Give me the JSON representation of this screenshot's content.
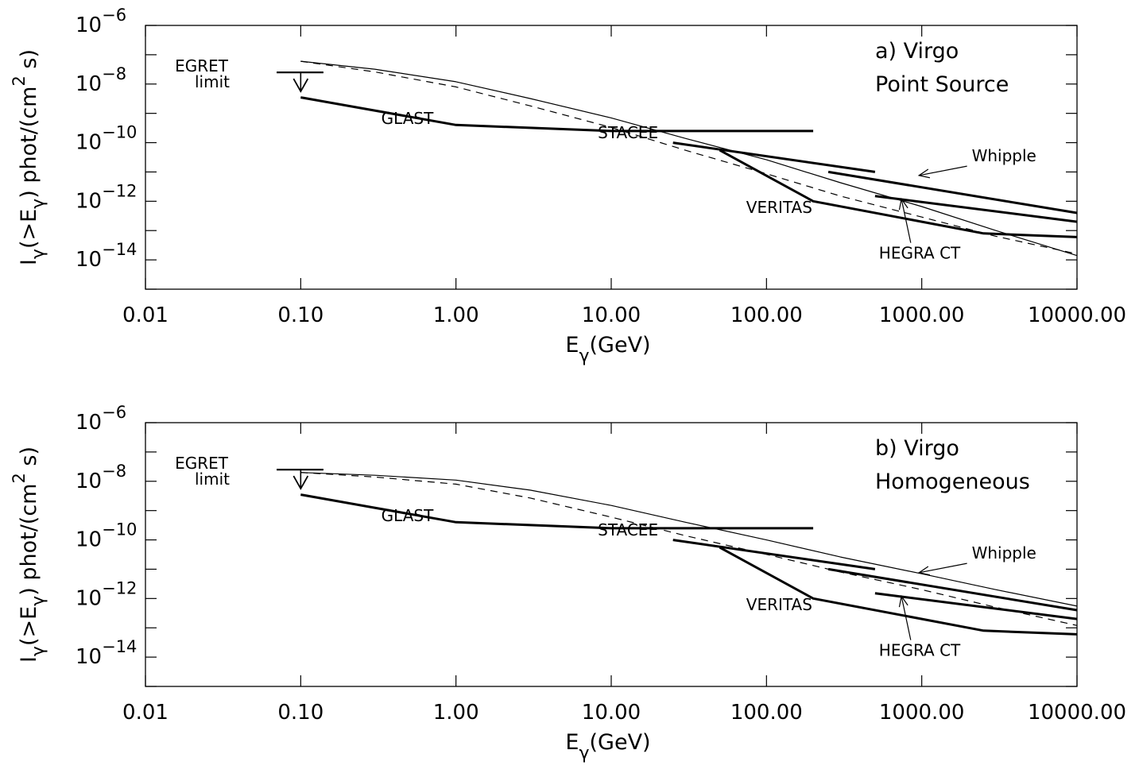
{
  "colors": {
    "background": "#ffffff",
    "ink": "#000000"
  },
  "chart_data": [
    {
      "type": "line",
      "panel_label": "a) Virgo",
      "panel_subtitle": "Point Source",
      "xscale": "log",
      "yscale": "log",
      "xlim": [
        0.01,
        10000
      ],
      "ylim": [
        1e-15,
        1e-06
      ],
      "x_ticks": [
        0.01,
        0.1,
        1,
        10,
        100,
        1000,
        10000
      ],
      "x_tick_labels": [
        "0.01",
        "0.10",
        "1.00",
        "10.00",
        "100.00",
        "1000.00",
        "10000.00"
      ],
      "y_ticks": [
        1e-06,
        1e-08,
        1e-10,
        1e-12,
        1e-14
      ],
      "y_tick_labels": [
        {
          "base": "10",
          "exp": "−6"
        },
        {
          "base": "10",
          "exp": "−8"
        },
        {
          "base": "10",
          "exp": "−10"
        },
        {
          "base": "10",
          "exp": "−12"
        },
        {
          "base": "10",
          "exp": "−14"
        }
      ],
      "xlabel": {
        "main": "E",
        "sub": "γ",
        "unit": "(GeV)"
      },
      "ylabel": {
        "t1": "I",
        "s1": "γ",
        "t2": "(>E",
        "s2": "γ",
        "t3": ") phot/(cm",
        "sup": "2",
        "t4": " s)"
      },
      "egret_limit": {
        "label_line1": "EGRET",
        "label_line2": "limit",
        "value": 2.5e-08,
        "x_range": [
          0.07,
          0.14
        ],
        "arrow_x": 0.1
      },
      "series": [
        {
          "name": "model (solid)",
          "style": "thin",
          "x": [
            0.1,
            0.3,
            1,
            3,
            10,
            30,
            100,
            300,
            1000,
            3000,
            10000
          ],
          "y": [
            6e-08,
            3.2e-08,
            1.2e-08,
            3.2e-09,
            7e-10,
            1.4e-10,
            2.6e-11,
            4.3e-12,
            6.6e-13,
            1e-13,
            1.4e-14
          ]
        },
        {
          "name": "model (dashed)",
          "style": "dashed",
          "x": [
            0.1,
            0.3,
            1,
            3,
            10,
            30,
            100,
            300,
            1000,
            3000,
            10000
          ],
          "y": [
            6e-08,
            2.6e-08,
            8e-09,
            1.8e-09,
            3.3e-10,
            5.5e-11,
            8.7e-12,
            1.5e-12,
            2.9e-13,
            6.4e-14,
            1.6e-14
          ]
        },
        {
          "name": "GLAST",
          "style": "thick",
          "x": [
            0.1,
            1,
            10,
            200
          ],
          "y": [
            3.5e-09,
            4e-10,
            2.5e-10,
            2.5e-10
          ]
        },
        {
          "name": "STACEE",
          "style": "thick",
          "x": [
            25,
            500
          ],
          "y": [
            1e-10,
            1e-11
          ]
        },
        {
          "name": "VERITAS",
          "style": "thick",
          "x": [
            50,
            200,
            2500,
            10000
          ],
          "y": [
            5.5e-11,
            1e-12,
            8e-14,
            6e-14
          ]
        },
        {
          "name": "Whipple",
          "style": "thick",
          "x": [
            250,
            10000
          ],
          "y": [
            1e-11,
            4e-13
          ]
        },
        {
          "name": "HEGRA CT",
          "style": "thick",
          "x": [
            500,
            10000
          ],
          "y": [
            1.5e-12,
            2e-13
          ]
        }
      ],
      "annotations": [
        {
          "text": "GLAST",
          "x": 0.33,
          "y": 4.4e-10
        },
        {
          "text": "STACEE",
          "x": 8.2,
          "y": 1.4e-10
        },
        {
          "text": "VERITAS",
          "x": 74,
          "y": 4e-13
        },
        {
          "text": "Whipple",
          "x": 2100,
          "y": 2.3e-11,
          "arrow_to": [
            960,
            7.6e-12
          ]
        },
        {
          "text": "HEGRA CT",
          "x": 530,
          "y": 1.1e-14,
          "arrow_to": [
            740,
            1.2e-12
          ]
        }
      ]
    },
    {
      "type": "line",
      "panel_label": "b) Virgo",
      "panel_subtitle": "Homogeneous",
      "xscale": "log",
      "yscale": "log",
      "xlim": [
        0.01,
        10000
      ],
      "ylim": [
        1e-15,
        1e-06
      ],
      "x_ticks": [
        0.01,
        0.1,
        1,
        10,
        100,
        1000,
        10000
      ],
      "x_tick_labels": [
        "0.01",
        "0.10",
        "1.00",
        "10.00",
        "100.00",
        "1000.00",
        "10000.00"
      ],
      "y_ticks": [
        1e-06,
        1e-08,
        1e-10,
        1e-12,
        1e-14
      ],
      "y_tick_labels": [
        {
          "base": "10",
          "exp": "−6"
        },
        {
          "base": "10",
          "exp": "−8"
        },
        {
          "base": "10",
          "exp": "−10"
        },
        {
          "base": "10",
          "exp": "−12"
        },
        {
          "base": "10",
          "exp": "−14"
        }
      ],
      "xlabel": {
        "main": "E",
        "sub": "γ",
        "unit": "(GeV)"
      },
      "ylabel": {
        "t1": "I",
        "s1": "γ",
        "t2": "(>E",
        "s2": "γ",
        "t3": ") phot/(cm",
        "sup": "2",
        "t4": " s)"
      },
      "egret_limit": {
        "label_line1": "EGRET",
        "label_line2": "limit",
        "value": 2.5e-08,
        "x_range": [
          0.07,
          0.14
        ],
        "arrow_x": 0.1
      },
      "series": [
        {
          "name": "model (solid)",
          "style": "thin",
          "x": [
            0.1,
            0.3,
            1,
            3,
            10,
            30,
            100,
            300,
            1000,
            3000,
            10000
          ],
          "y": [
            2e-08,
            1.6e-08,
            1.1e-08,
            5e-09,
            1.5e-09,
            4e-10,
            1e-10,
            2.6e-11,
            7e-12,
            2e-12,
            5.5e-13
          ]
        },
        {
          "name": "model (dashed)",
          "style": "dashed",
          "x": [
            0.1,
            0.3,
            1,
            3,
            10,
            30,
            100,
            300,
            1000,
            3000,
            10000
          ],
          "y": [
            2e-08,
            1.4e-08,
            8e-09,
            2.7e-09,
            6e-10,
            1.4e-10,
            3.2e-11,
            8e-12,
            2e-12,
            5e-13,
            1.2e-13
          ]
        },
        {
          "name": "GLAST",
          "style": "thick",
          "x": [
            0.1,
            1,
            10,
            200
          ],
          "y": [
            3.5e-09,
            4e-10,
            2.5e-10,
            2.5e-10
          ]
        },
        {
          "name": "STACEE",
          "style": "thick",
          "x": [
            25,
            500
          ],
          "y": [
            1e-10,
            1e-11
          ]
        },
        {
          "name": "VERITAS",
          "style": "thick",
          "x": [
            50,
            200,
            2500,
            10000
          ],
          "y": [
            5.5e-11,
            1e-12,
            8e-14,
            6e-14
          ]
        },
        {
          "name": "Whipple",
          "style": "thick",
          "x": [
            250,
            10000
          ],
          "y": [
            1e-11,
            4e-13
          ]
        },
        {
          "name": "HEGRA CT",
          "style": "thick",
          "x": [
            500,
            10000
          ],
          "y": [
            1.5e-12,
            2e-13
          ]
        }
      ],
      "annotations": [
        {
          "text": "GLAST",
          "x": 0.33,
          "y": 4.4e-10
        },
        {
          "text": "STACEE",
          "x": 8.2,
          "y": 1.4e-10
        },
        {
          "text": "VERITAS",
          "x": 74,
          "y": 4e-13
        },
        {
          "text": "Whipple",
          "x": 2100,
          "y": 2.3e-11,
          "arrow_to": [
            960,
            7.6e-12
          ]
        },
        {
          "text": "HEGRA CT",
          "x": 530,
          "y": 1.1e-14,
          "arrow_to": [
            740,
            1.2e-12
          ]
        }
      ]
    }
  ]
}
